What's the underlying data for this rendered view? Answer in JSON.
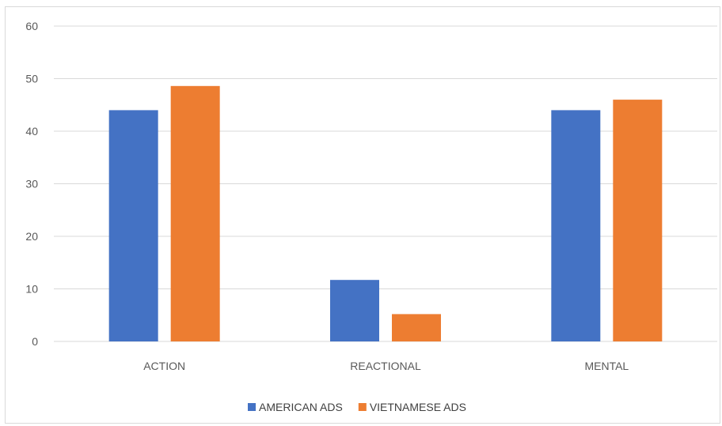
{
  "chart_data": {
    "type": "bar",
    "title": "",
    "xlabel": "",
    "ylabel": "",
    "categories": [
      "ACTION",
      "REACTIONAL",
      "MENTAL"
    ],
    "series": [
      {
        "name": "AMERICAN ADS",
        "color": "#4472c4",
        "values": [
          44,
          11.7,
          44
        ]
      },
      {
        "name": "VIETNAMESE ADS",
        "color": "#ed7d31",
        "values": [
          48.6,
          5.2,
          46
        ]
      }
    ],
    "ylim": [
      0,
      60
    ],
    "yticks": [
      0,
      10,
      20,
      30,
      40,
      50,
      60
    ],
    "grid": true,
    "legend": "bottom"
  }
}
